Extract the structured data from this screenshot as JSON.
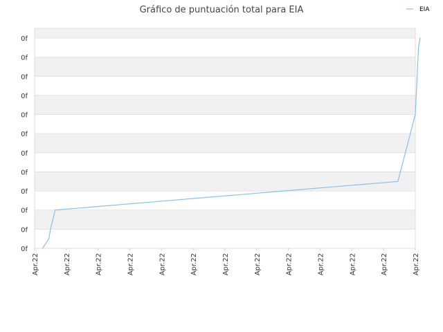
{
  "chart_data": {
    "type": "line",
    "title": "Gráfico de puntuación total para EIA",
    "xlabel": "",
    "ylabel": "",
    "legend": {
      "placement": "top-right",
      "entries": [
        "EIA"
      ]
    },
    "grid": true,
    "band_colors": [
      "#f1f1f1",
      "#ffffff"
    ],
    "x_tick_labels": [
      "Apr.22",
      "Apr.22",
      "Apr.22",
      "Apr.22",
      "Apr.22",
      "Apr.22",
      "Apr.22",
      "Apr.22",
      "Apr.22",
      "Apr.22",
      "Apr.22",
      "Apr.22",
      "Apr.22"
    ],
    "y_tick_labels": [
      "0f",
      "0f",
      "0f",
      "0f",
      "0f",
      "0f",
      "0f",
      "0f",
      "0f",
      "0f",
      "0f",
      "0f"
    ],
    "xlim": [
      0,
      12
    ],
    "ylim": [
      0,
      11
    ],
    "series": [
      {
        "name": "EIA",
        "color": "#88c0eb",
        "x": [
          0.25,
          0.45,
          0.5,
          0.65,
          11.45,
          12.0,
          12.1,
          12.15
        ],
        "y": [
          0.0,
          0.5,
          1.0,
          2.0,
          3.5,
          7.0,
          10.5,
          11.0
        ]
      }
    ]
  }
}
